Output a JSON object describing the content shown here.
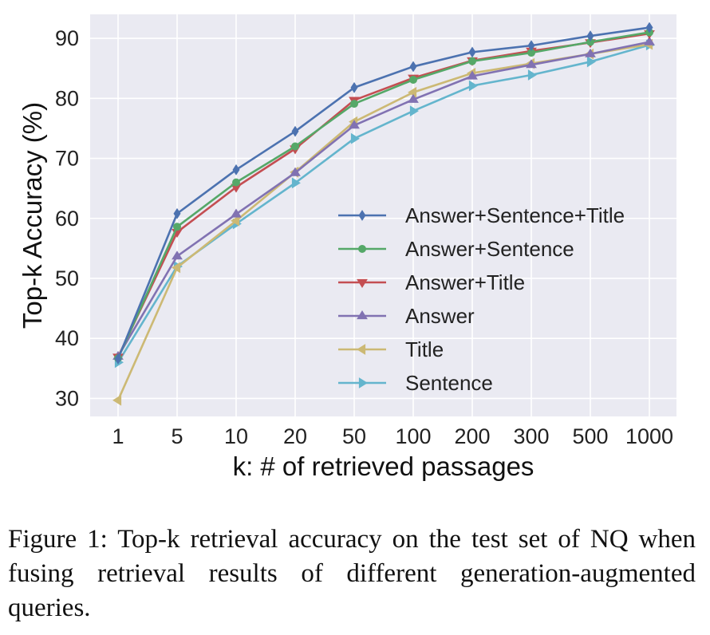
{
  "chart_data": {
    "type": "line",
    "xlabel": "k: # of retrieved passages",
    "ylabel": "Top-k Accuracy (%)",
    "categories": [
      "1",
      "5",
      "10",
      "20",
      "50",
      "100",
      "200",
      "300",
      "500",
      "1000"
    ],
    "ylim": [
      27,
      94
    ],
    "yticks": [
      30,
      40,
      50,
      60,
      70,
      80,
      90
    ],
    "grid": true,
    "legend_position": "center-right",
    "background": "#eaeaf2",
    "series": [
      {
        "name": "Answer+Sentence+Title",
        "color": "#4c72b0",
        "marker": "diamond",
        "values": [
          36.6,
          60.8,
          68.1,
          74.5,
          81.8,
          85.3,
          87.7,
          88.8,
          90.4,
          91.8
        ]
      },
      {
        "name": "Answer+Sentence",
        "color": "#55a868",
        "marker": "circle",
        "values": [
          36.7,
          58.6,
          66.0,
          72.0,
          79.1,
          83.1,
          86.2,
          87.6,
          89.4,
          91.0
        ]
      },
      {
        "name": "Answer+Title",
        "color": "#c44e52",
        "marker": "triangle-down",
        "values": [
          36.9,
          57.7,
          65.2,
          71.6,
          79.7,
          83.4,
          86.3,
          87.9,
          89.3,
          90.8
        ]
      },
      {
        "name": "Answer",
        "color": "#8172b2",
        "marker": "triangle-up",
        "values": [
          37.0,
          53.7,
          60.7,
          67.6,
          75.5,
          79.8,
          83.7,
          85.6,
          87.4,
          89.4
        ]
      },
      {
        "name": "Title",
        "color": "#ccb974",
        "marker": "triangle-left",
        "values": [
          29.7,
          51.8,
          59.6,
          67.7,
          76.1,
          81.0,
          84.2,
          85.8,
          87.4,
          89.0
        ]
      },
      {
        "name": "Sentence",
        "color": "#64b5cd",
        "marker": "triangle-right",
        "values": [
          36.0,
          52.0,
          59.1,
          65.9,
          73.3,
          77.9,
          82.1,
          83.9,
          86.1,
          88.9
        ]
      }
    ]
  },
  "caption": "Figure 1: Top-k retrieval accuracy on the test set of NQ when fusing retrieval results of different generation-augmented queries."
}
